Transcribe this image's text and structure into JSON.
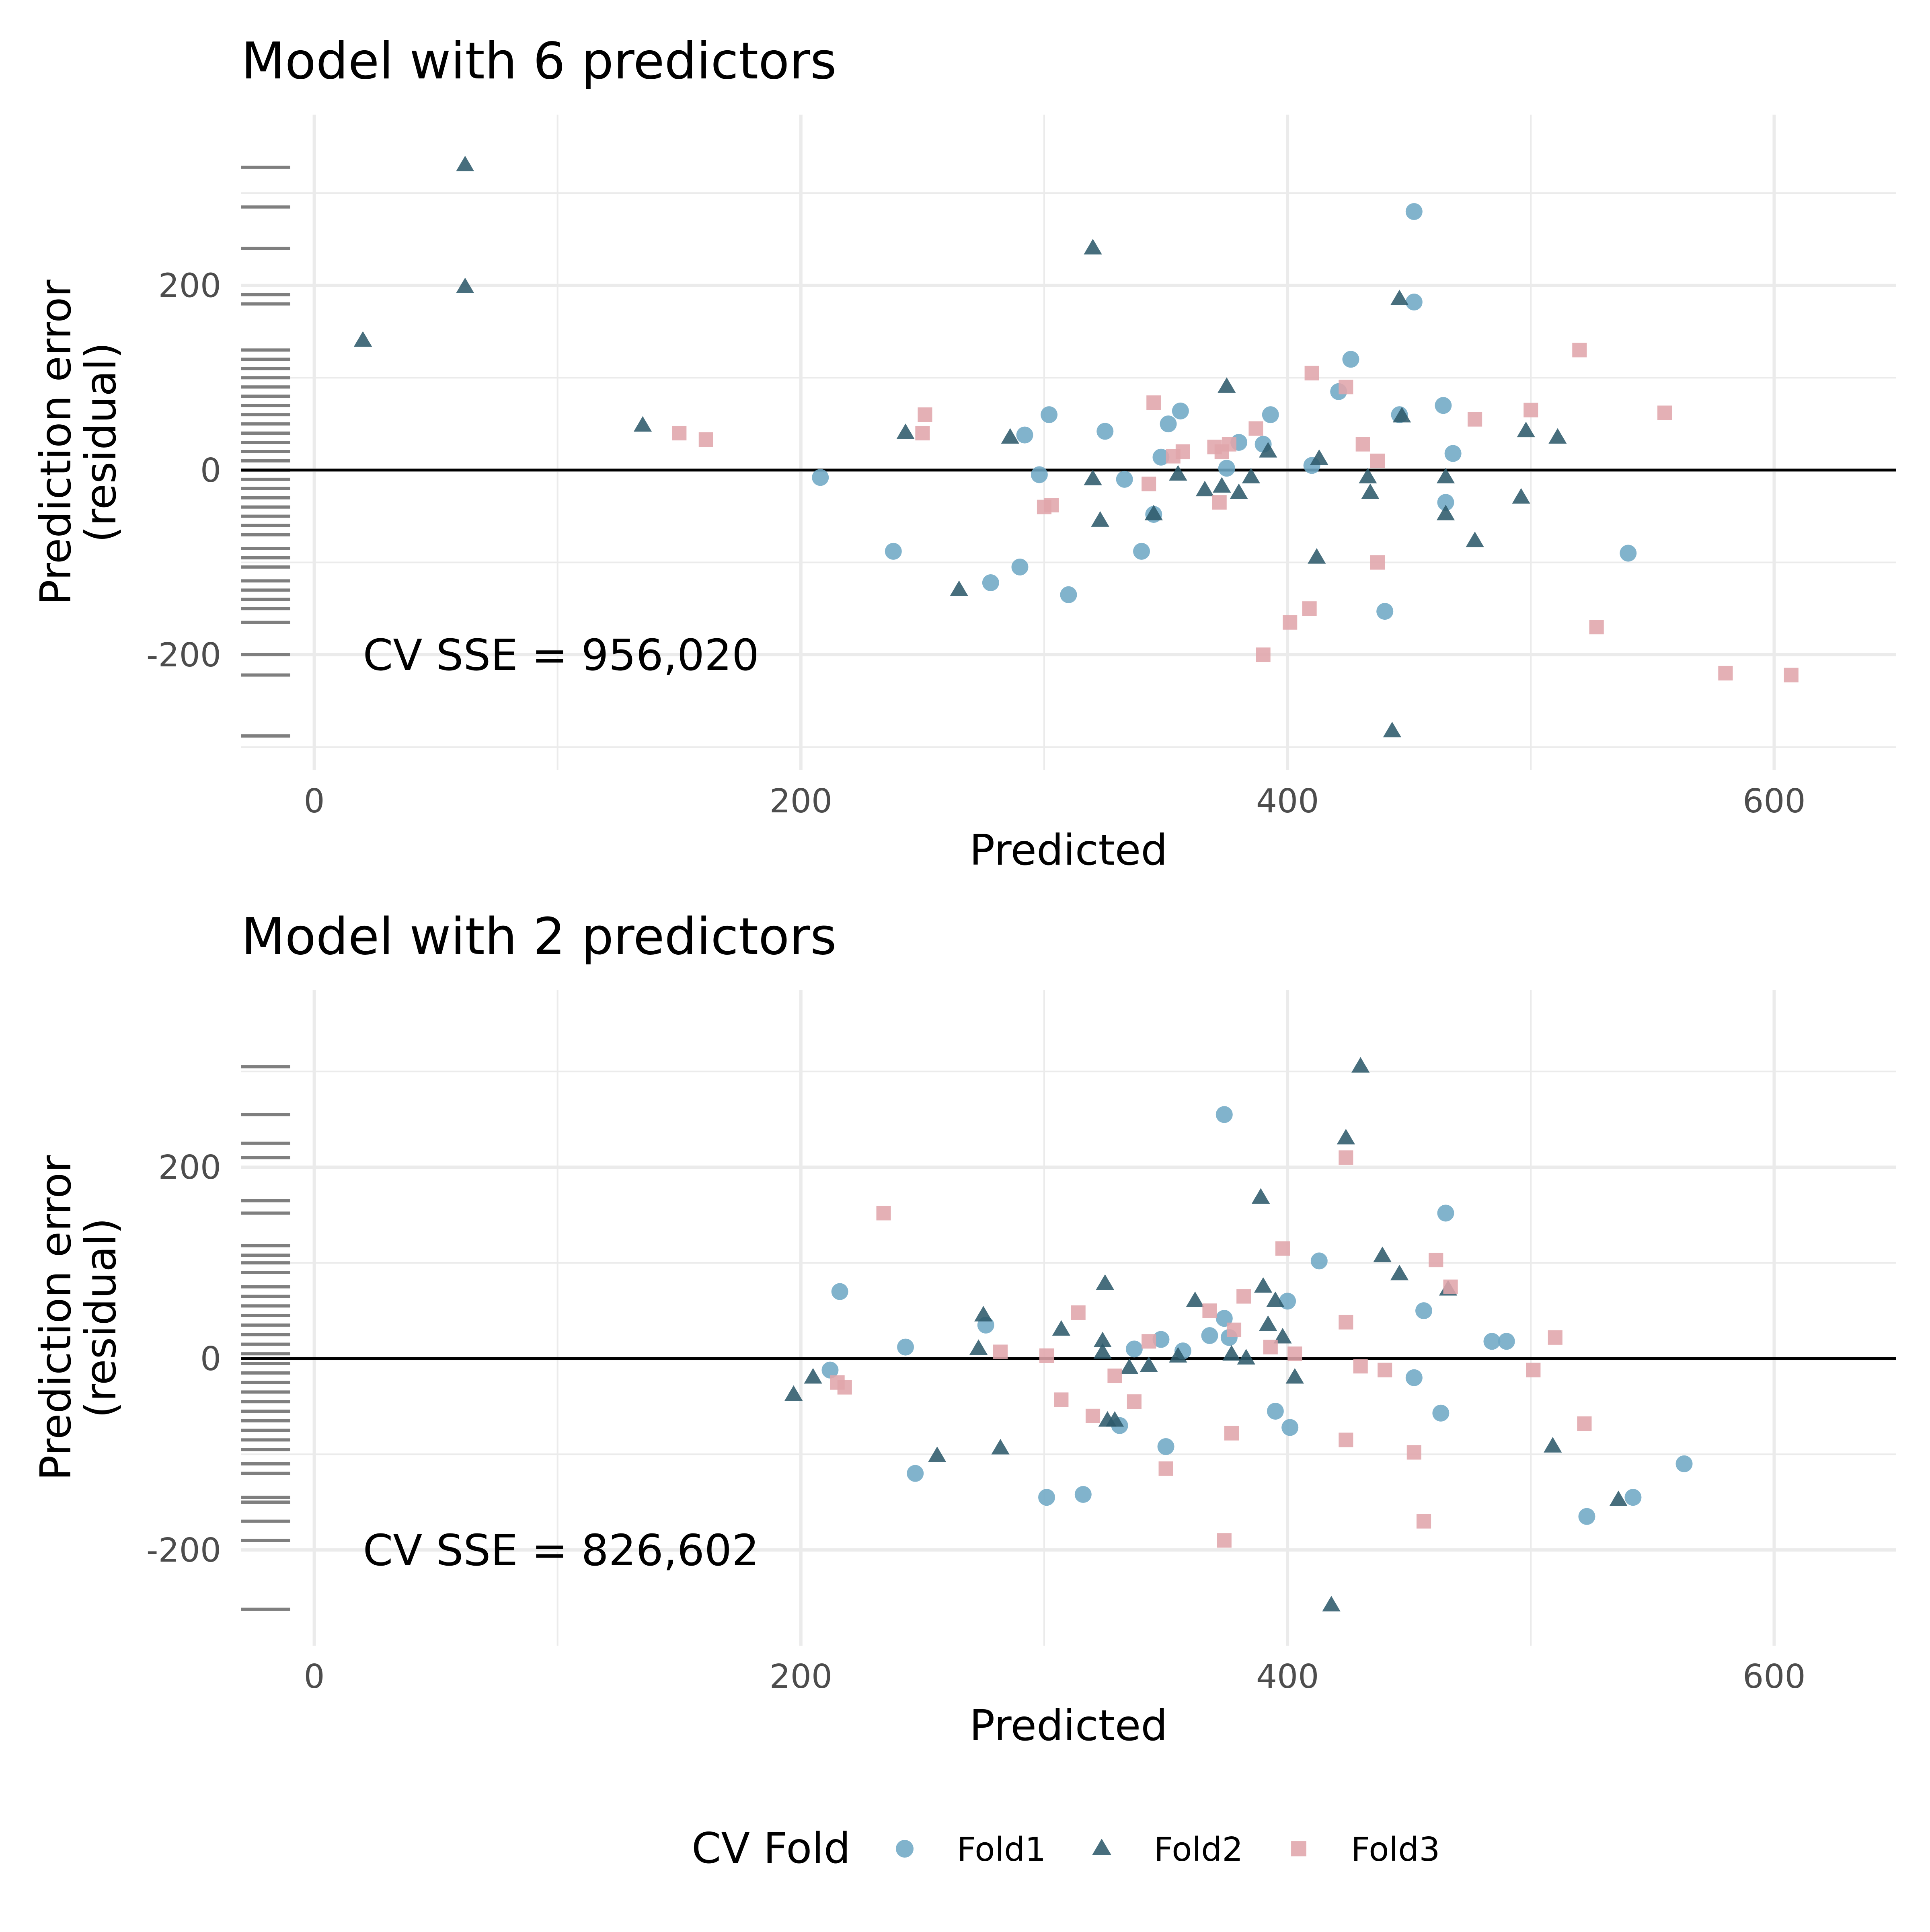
{
  "colors": {
    "Fold1": "#6fa8c5",
    "Fold2": "#2e5a6b",
    "Fold3": "#e0a5ab",
    "rug": "#7f7f7f",
    "grid": "#ebebeb",
    "zero_line": "#000000"
  },
  "legend": {
    "title": "CV Fold",
    "items": [
      {
        "label": "Fold1",
        "shape": "circle"
      },
      {
        "label": "Fold2",
        "shape": "triangle"
      },
      {
        "label": "Fold3",
        "shape": "square"
      }
    ]
  },
  "chart_data": [
    {
      "type": "scatter",
      "title": "Model with 6 predictors",
      "xlabel": "Predicted",
      "ylabel": "Prediction error\n(residual)",
      "annotation": "CV SSE = 956,020",
      "xlim": [
        -30,
        650
      ],
      "ylim": [
        -325,
        385
      ],
      "xticks": [
        0,
        200,
        400,
        600
      ],
      "yticks": [
        -200,
        0,
        200
      ],
      "xtick_labels": [
        "0",
        "200",
        "400",
        "600"
      ],
      "ytick_labels": [
        "-200",
        "0",
        "200"
      ],
      "hline": 0,
      "grid": true,
      "rug": "left",
      "series": [
        {
          "name": "Fold1",
          "shape": "circle",
          "points": [
            [
              208,
              -8
            ],
            [
              238,
              -88
            ],
            [
              278,
              -122
            ],
            [
              290,
              -105
            ],
            [
              292,
              38
            ],
            [
              298,
              -5
            ],
            [
              302,
              60
            ],
            [
              310,
              -135
            ],
            [
              325,
              42
            ],
            [
              333,
              -10
            ],
            [
              340,
              -88
            ],
            [
              345,
              -48
            ],
            [
              348,
              14
            ],
            [
              351,
              50
            ],
            [
              356,
              64
            ],
            [
              375,
              2
            ],
            [
              380,
              30
            ],
            [
              390,
              28
            ],
            [
              393,
              60
            ],
            [
              410,
              5
            ],
            [
              421,
              85
            ],
            [
              426,
              120
            ],
            [
              440,
              -153
            ],
            [
              446,
              60
            ],
            [
              452,
              280
            ],
            [
              452,
              182
            ],
            [
              464,
              70
            ],
            [
              465,
              -35
            ],
            [
              468,
              18
            ],
            [
              540,
              -90
            ]
          ]
        },
        {
          "name": "Fold2",
          "shape": "triangle",
          "points": [
            [
              20,
              140
            ],
            [
              62,
              330
            ],
            [
              62,
              198
            ],
            [
              135,
              48
            ],
            [
              243,
              40
            ],
            [
              265,
              -130
            ],
            [
              286,
              35
            ],
            [
              320,
              240
            ],
            [
              320,
              -10
            ],
            [
              323,
              -55
            ],
            [
              345,
              -48
            ],
            [
              355,
              -5
            ],
            [
              366,
              -22
            ],
            [
              373,
              -18
            ],
            [
              375,
              90
            ],
            [
              380,
              -25
            ],
            [
              385,
              -8
            ],
            [
              392,
              20
            ],
            [
              412,
              -95
            ],
            [
              413,
              12
            ],
            [
              433,
              -8
            ],
            [
              434,
              -25
            ],
            [
              443,
              -283
            ],
            [
              446,
              185
            ],
            [
              447,
              58
            ],
            [
              465,
              -8
            ],
            [
              465,
              -48
            ],
            [
              477,
              -77
            ],
            [
              496,
              -30
            ],
            [
              498,
              42
            ],
            [
              511,
              35
            ]
          ]
        },
        {
          "name": "Fold3",
          "shape": "square",
          "points": [
            [
              150,
              40
            ],
            [
              161,
              33
            ],
            [
              250,
              40
            ],
            [
              251,
              60
            ],
            [
              300,
              -40
            ],
            [
              303,
              -38
            ],
            [
              343,
              -15
            ],
            [
              345,
              73
            ],
            [
              353,
              15
            ],
            [
              357,
              20
            ],
            [
              370,
              25
            ],
            [
              372,
              -35
            ],
            [
              373,
              20
            ],
            [
              376,
              28
            ],
            [
              387,
              45
            ],
            [
              390,
              -200
            ],
            [
              401,
              -165
            ],
            [
              409,
              -150
            ],
            [
              410,
              105
            ],
            [
              424,
              90
            ],
            [
              431,
              28
            ],
            [
              437,
              10
            ],
            [
              437,
              -100
            ],
            [
              477,
              55
            ],
            [
              500,
              65
            ],
            [
              520,
              130
            ],
            [
              527,
              -170
            ],
            [
              555,
              62
            ],
            [
              580,
              -220
            ],
            [
              607,
              -222
            ]
          ]
        }
      ],
      "rug_values": [
        328,
        285,
        240,
        190,
        180,
        130,
        120,
        110,
        100,
        90,
        80,
        70,
        60,
        50,
        40,
        30,
        20,
        10,
        0,
        -10,
        -20,
        -30,
        -40,
        -50,
        -60,
        -70,
        -85,
        -95,
        -105,
        -120,
        -130,
        -140,
        -150,
        -165,
        -200,
        -222,
        -288
      ]
    },
    {
      "type": "scatter",
      "title": "Model with 2 predictors",
      "xlabel": "Predicted",
      "ylabel": "Prediction error\n(residual)",
      "annotation": "CV SSE = 826,602",
      "xlim": [
        -30,
        650
      ],
      "ylim": [
        -300,
        385
      ],
      "xticks": [
        0,
        200,
        400,
        600
      ],
      "yticks": [
        -200,
        0,
        200
      ],
      "xtick_labels": [
        "0",
        "200",
        "400",
        "600"
      ],
      "ytick_labels": [
        "-200",
        "0",
        "200"
      ],
      "hline": 0,
      "grid": true,
      "rug": "left",
      "series": [
        {
          "name": "Fold1",
          "shape": "circle",
          "points": [
            [
              212,
              -12
            ],
            [
              216,
              70
            ],
            [
              243,
              12
            ],
            [
              247,
              -120
            ],
            [
              276,
              35
            ],
            [
              301,
              -145
            ],
            [
              316,
              -142
            ],
            [
              331,
              -70
            ],
            [
              337,
              10
            ],
            [
              348,
              20
            ],
            [
              350,
              -92
            ],
            [
              357,
              8
            ],
            [
              368,
              24
            ],
            [
              374,
              255
            ],
            [
              374,
              42
            ],
            [
              376,
              22
            ],
            [
              395,
              -55
            ],
            [
              400,
              60
            ],
            [
              401,
              -72
            ],
            [
              413,
              102
            ],
            [
              452,
              -20
            ],
            [
              456,
              50
            ],
            [
              463,
              -57
            ],
            [
              465,
              152
            ],
            [
              484,
              18
            ],
            [
              490,
              18
            ],
            [
              523,
              -165
            ],
            [
              542,
              -145
            ],
            [
              563,
              -110
            ]
          ]
        },
        {
          "name": "Fold2",
          "shape": "triangle",
          "points": [
            [
              197,
              -38
            ],
            [
              205,
              -20
            ],
            [
              256,
              -102
            ],
            [
              273,
              10
            ],
            [
              275,
              45
            ],
            [
              282,
              -94
            ],
            [
              307,
              30
            ],
            [
              324,
              18
            ],
            [
              324,
              6
            ],
            [
              325,
              78
            ],
            [
              326,
              -65
            ],
            [
              329,
              -65
            ],
            [
              335,
              -10
            ],
            [
              343,
              -8
            ],
            [
              355,
              2
            ],
            [
              362,
              60
            ],
            [
              377,
              4
            ],
            [
              383,
              0
            ],
            [
              389,
              168
            ],
            [
              390,
              75
            ],
            [
              392,
              35
            ],
            [
              395,
              60
            ],
            [
              398,
              22
            ],
            [
              403,
              -20
            ],
            [
              418,
              -258
            ],
            [
              424,
              230
            ],
            [
              430,
              305
            ],
            [
              439,
              107
            ],
            [
              446,
              88
            ],
            [
              466,
              72
            ],
            [
              509,
              -92
            ],
            [
              536,
              -148
            ]
          ]
        },
        {
          "name": "Fold3",
          "shape": "square",
          "points": [
            [
              215,
              -25
            ],
            [
              218,
              -30
            ],
            [
              234,
              152
            ],
            [
              282,
              7
            ],
            [
              301,
              3
            ],
            [
              307,
              -43
            ],
            [
              314,
              48
            ],
            [
              320,
              -60
            ],
            [
              329,
              -18
            ],
            [
              337,
              -45
            ],
            [
              343,
              18
            ],
            [
              350,
              -115
            ],
            [
              368,
              50
            ],
            [
              374,
              -190
            ],
            [
              377,
              -78
            ],
            [
              378,
              30
            ],
            [
              382,
              65
            ],
            [
              393,
              12
            ],
            [
              398,
              115
            ],
            [
              403,
              5
            ],
            [
              424,
              -85
            ],
            [
              424,
              38
            ],
            [
              424,
              210
            ],
            [
              430,
              -8
            ],
            [
              440,
              -12
            ],
            [
              452,
              -98
            ],
            [
              456,
              -170
            ],
            [
              461,
              103
            ],
            [
              467,
              75
            ],
            [
              501,
              -12
            ],
            [
              510,
              22
            ],
            [
              522,
              -68
            ]
          ]
        }
      ],
      "rug_values": [
        305,
        255,
        225,
        210,
        165,
        152,
        118,
        108,
        100,
        90,
        75,
        65,
        55,
        45,
        35,
        25,
        15,
        5,
        -5,
        -15,
        -25,
        -35,
        -45,
        -55,
        -65,
        -75,
        -85,
        -95,
        -110,
        -120,
        -145,
        -150,
        -170,
        -190,
        -262
      ]
    }
  ]
}
